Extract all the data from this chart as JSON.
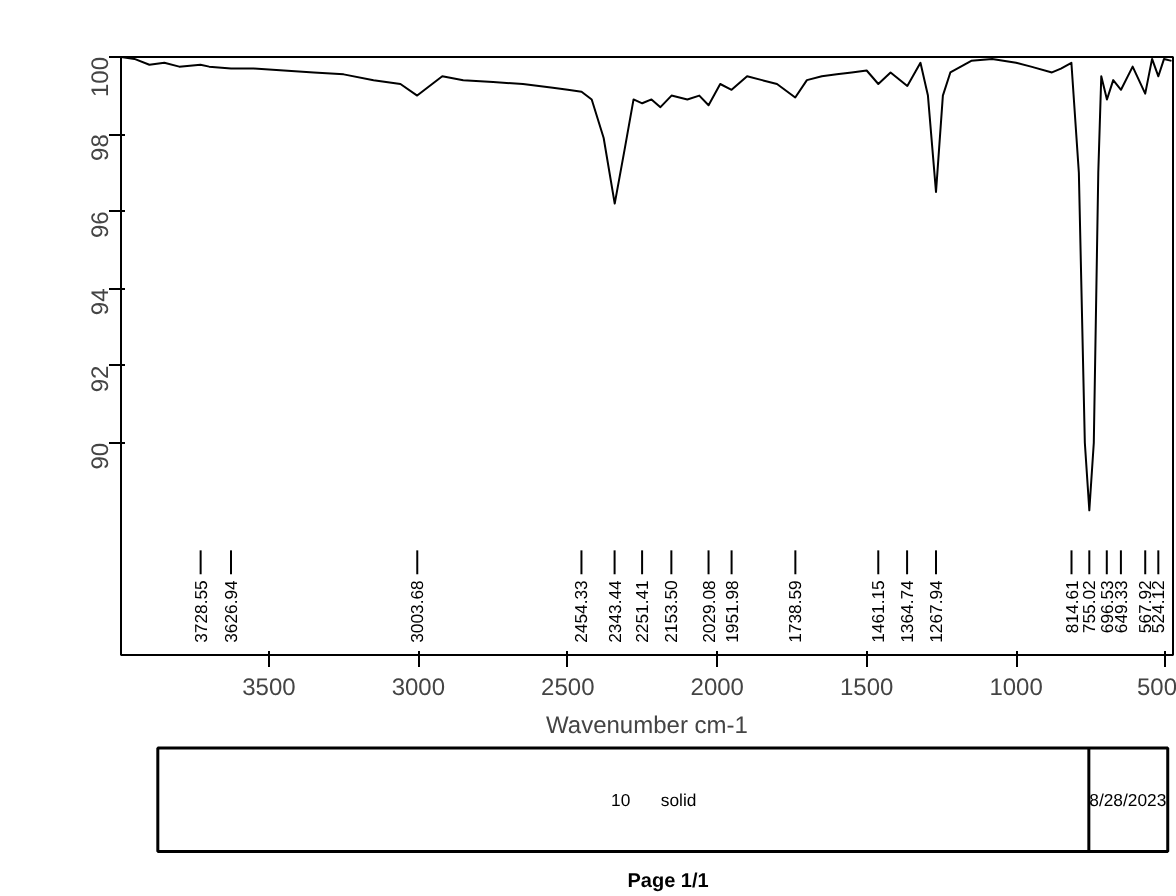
{
  "chart_data": {
    "type": "line",
    "xlabel": "Wavenumber cm-1",
    "xlim": [
      3995,
      475
    ],
    "xticks": [
      3500,
      3000,
      2500,
      2000,
      1500,
      1000,
      500
    ],
    "ylim": [
      84.5,
      100
    ],
    "yticks": [
      90,
      92,
      94,
      96,
      98,
      100
    ],
    "grid": false,
    "line_style": "solid",
    "series": [
      {
        "color": "#000000",
        "x": [
          3995,
          3950,
          3900,
          3850,
          3800,
          3729,
          3700,
          3627,
          3550,
          3450,
          3350,
          3250,
          3150,
          3060,
          3004,
          2920,
          2850,
          2750,
          2650,
          2550,
          2500,
          2454,
          2420,
          2380,
          2343,
          2310,
          2280,
          2251,
          2220,
          2190,
          2153,
          2100,
          2060,
          2029,
          1990,
          1952,
          1900,
          1850,
          1800,
          1739,
          1700,
          1650,
          1600,
          1550,
          1500,
          1461,
          1420,
          1364,
          1320,
          1295,
          1268,
          1245,
          1220,
          1150,
          1080,
          1000,
          950,
          880,
          850,
          815,
          790,
          770,
          755,
          740,
          725,
          715,
          696,
          675,
          649,
          610,
          568,
          545,
          524,
          505,
          480
        ],
        "values": [
          100,
          99.95,
          99.8,
          99.85,
          99.75,
          99.8,
          99.75,
          99.7,
          99.7,
          99.65,
          99.6,
          99.55,
          99.4,
          99.3,
          99.0,
          99.5,
          99.4,
          99.35,
          99.3,
          99.2,
          99.15,
          99.1,
          98.9,
          97.9,
          96.2,
          97.6,
          98.9,
          98.8,
          98.9,
          98.7,
          99.0,
          98.9,
          99.0,
          98.75,
          99.3,
          99.15,
          99.5,
          99.4,
          99.3,
          98.95,
          99.4,
          99.5,
          99.55,
          99.6,
          99.65,
          99.3,
          99.6,
          99.25,
          99.85,
          99.0,
          96.5,
          99.0,
          99.6,
          99.9,
          99.95,
          99.85,
          99.75,
          99.6,
          99.7,
          99.85,
          97.0,
          90.0,
          88.25,
          90.0,
          97.0,
          99.5,
          98.9,
          99.4,
          99.15,
          99.75,
          99.05,
          99.95,
          99.5,
          99.95,
          99.9
        ]
      }
    ],
    "annotations": [
      {
        "text": "3728.55",
        "x": 3728.55
      },
      {
        "text": "3626.94",
        "x": 3626.94
      },
      {
        "text": "3003.68",
        "x": 3003.68
      },
      {
        "text": "2454.33",
        "x": 2454.33
      },
      {
        "text": "2343.44",
        "x": 2343.44
      },
      {
        "text": "2251.41",
        "x": 2251.41
      },
      {
        "text": "2153.50",
        "x": 2153.5
      },
      {
        "text": "2029.08",
        "x": 2029.08
      },
      {
        "text": "1951.98",
        "x": 1951.98
      },
      {
        "text": "1738.59",
        "x": 1738.59
      },
      {
        "text": "1461.15",
        "x": 1461.15
      },
      {
        "text": "1364.74",
        "x": 1364.74
      },
      {
        "text": "1267.94",
        "x": 1267.94
      },
      {
        "text": "814.61",
        "x": 814.61
      },
      {
        "text": "755.02",
        "x": 755.02
      },
      {
        "text": "696.53",
        "x": 696.53
      },
      {
        "text": "649.33",
        "x": 649.33
      },
      {
        "text": "567.92",
        "x": 567.92
      },
      {
        "text": "524.12",
        "x": 524.12
      },
      "10",
      "solid",
      "8/28/2023",
      "Page 1/1"
    ]
  }
}
